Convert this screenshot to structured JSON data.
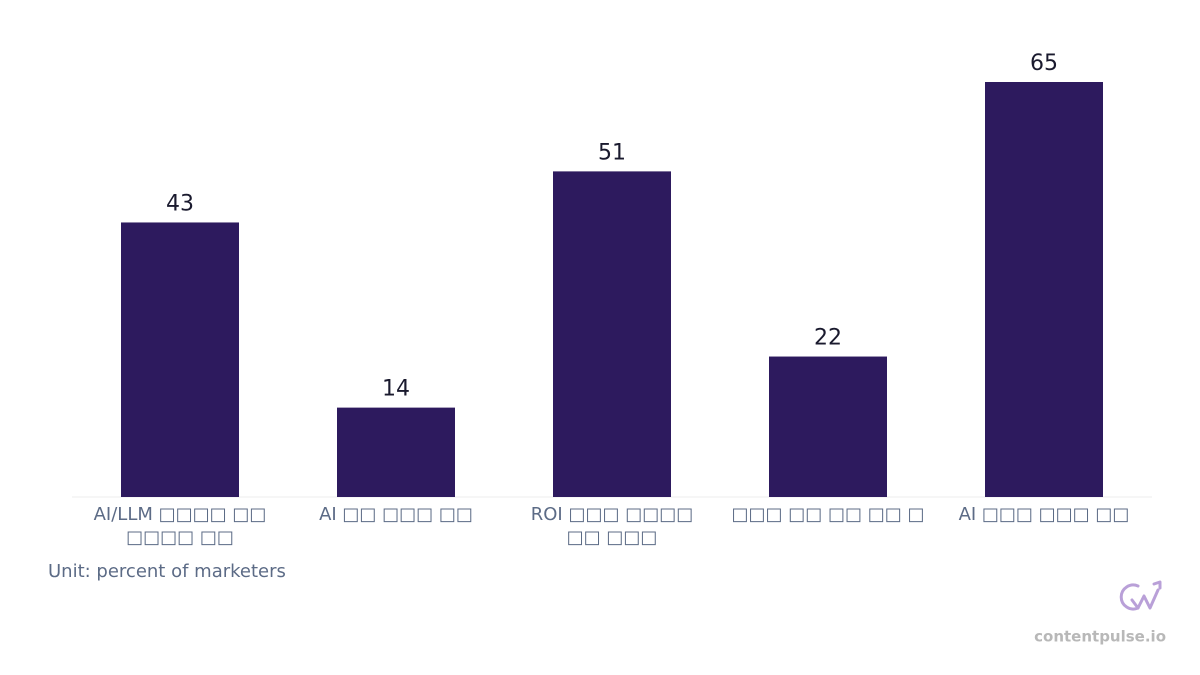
{
  "chart_data": {
    "type": "bar",
    "categories": [
      "AI/LLM □□□□ □□ □□□□ □□",
      "AI □□ □□□ □□",
      "ROI □□□ □□□□ □□ □□□",
      "□□□ □□ □□ □□ □",
      "AI □□□ □□□ □□"
    ],
    "values": [
      43,
      14,
      51,
      22,
      65
    ],
    "color": "#2d1a5e",
    "unit_note": "Unit: percent of marketers",
    "brand": "contentpulse.io"
  }
}
